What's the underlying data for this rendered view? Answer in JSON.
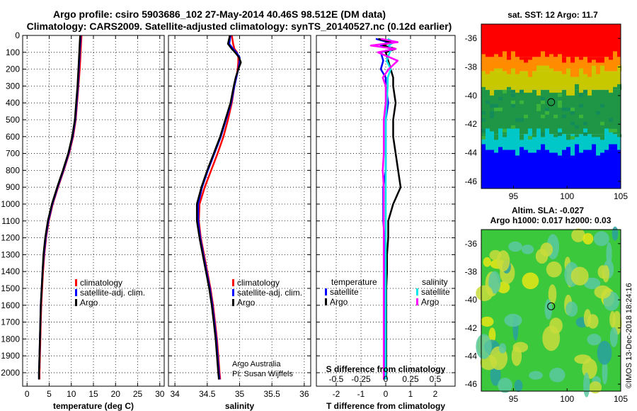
{
  "title_line1": "Argo profile: csiro 5903686_102 27-May-2014 40.46S 98.512E (DM data)",
  "title_line2": "Climatology: CARS2009. Satellite-adjusted climatology: synTS_20140527.nc (0.12d earlier)",
  "credit_text": "Argo Australia",
  "pi_text": "PI: Susan Wijffels",
  "imos_stamp": "©IMOS 13-Dec-2018 18:24:16",
  "colors": {
    "climatology": "#ff0000",
    "satellite": "#0000ff",
    "argo": "#000000",
    "sal_satellite": "#00e5e5",
    "sal_argo": "#ff00ff"
  },
  "chart_data": [
    {
      "type": "line",
      "id": "temperature",
      "xlabel": "temperature (deg C)",
      "ylabel": "",
      "xlim": [
        -1,
        31
      ],
      "ylim": [
        2080,
        0
      ],
      "y_reversed": true,
      "xticks": [
        0,
        5,
        10,
        15,
        20,
        25,
        30
      ],
      "xtick_labels": [
        "0",
        "5",
        "10",
        "15",
        "20",
        "25",
        "30"
      ],
      "yticks": [
        0,
        100,
        200,
        300,
        400,
        500,
        600,
        700,
        800,
        900,
        1000,
        1100,
        1200,
        1300,
        1400,
        1500,
        1600,
        1700,
        1800,
        1900,
        2000
      ],
      "grid": true,
      "legend": [
        "climatology",
        "satellite-adj. clim.",
        "Argo"
      ],
      "legend_position": "lower-right",
      "depth": [
        0,
        50,
        100,
        150,
        200,
        300,
        400,
        500,
        600,
        700,
        800,
        900,
        1000,
        1100,
        1200,
        1300,
        1400,
        1500,
        1600,
        1700,
        1800,
        1900,
        2000,
        2040
      ],
      "series": [
        {
          "name": "climatology",
          "values": [
            12.3,
            12.2,
            12.1,
            12.0,
            11.9,
            11.6,
            11.3,
            11.0,
            10.4,
            9.5,
            8.3,
            7.0,
            5.8,
            4.9,
            4.3,
            3.9,
            3.6,
            3.4,
            3.2,
            3.1,
            3.0,
            2.9,
            2.8,
            2.8
          ]
        },
        {
          "name": "satellite-adj. clim.",
          "values": [
            12.1,
            12.0,
            11.9,
            11.8,
            11.7,
            11.5,
            11.2,
            10.9,
            10.3,
            9.4,
            8.2,
            6.9,
            5.7,
            4.8,
            4.2,
            3.8,
            3.5,
            3.3,
            3.1,
            3.0,
            2.9,
            2.8,
            2.7,
            2.7
          ]
        },
        {
          "name": "Argo",
          "values": [
            12.0,
            11.9,
            11.8,
            11.7,
            11.6,
            11.4,
            11.1,
            10.8,
            10.2,
            9.3,
            8.1,
            6.8,
            5.6,
            4.7,
            4.1,
            3.7,
            3.5,
            3.3,
            3.1,
            3.0,
            2.9,
            2.8,
            2.7,
            2.7
          ]
        }
      ]
    },
    {
      "type": "line",
      "id": "salinity",
      "xlabel": "salinity",
      "ylabel": "",
      "xlim": [
        33.9,
        36.1
      ],
      "ylim": [
        2080,
        0
      ],
      "y_reversed": true,
      "xticks": [
        34,
        34.5,
        35,
        35.5,
        36
      ],
      "xtick_labels": [
        "34",
        "34.5",
        "35",
        "35.5",
        "36"
      ],
      "grid": true,
      "legend": [
        "climatology",
        "satellite-adj. clim.",
        "Argo"
      ],
      "legend_position": "lower-right",
      "depth": [
        0,
        50,
        80,
        100,
        130,
        160,
        200,
        250,
        300,
        400,
        500,
        600,
        700,
        800,
        900,
        1000,
        1100,
        1200,
        1300,
        1400,
        1500,
        1600,
        1700,
        1800,
        1900,
        2000,
        2040
      ],
      "series": [
        {
          "name": "climatology",
          "values": [
            34.88,
            34.9,
            34.92,
            34.96,
            34.98,
            34.98,
            34.97,
            34.95,
            34.92,
            34.88,
            34.82,
            34.75,
            34.66,
            34.56,
            34.46,
            34.38,
            34.37,
            34.4,
            34.45,
            34.5,
            34.55,
            34.59,
            34.62,
            34.65,
            34.67,
            34.69,
            34.7
          ]
        },
        {
          "name": "satellite-adj. clim.",
          "values": [
            34.86,
            34.84,
            34.9,
            34.95,
            35.0,
            35.0,
            34.98,
            34.95,
            34.92,
            34.87,
            34.79,
            34.71,
            34.61,
            34.51,
            34.42,
            34.36,
            34.36,
            34.39,
            34.44,
            34.49,
            34.54,
            34.58,
            34.61,
            34.64,
            34.66,
            34.68,
            34.69
          ]
        },
        {
          "name": "Argo",
          "values": [
            34.85,
            34.82,
            34.88,
            34.93,
            34.99,
            35.02,
            34.98,
            34.94,
            34.91,
            34.86,
            34.78,
            34.7,
            34.6,
            34.5,
            34.41,
            34.34,
            34.34,
            34.38,
            34.43,
            34.48,
            34.53,
            34.57,
            34.6,
            34.63,
            34.65,
            34.67,
            34.68
          ]
        }
      ]
    },
    {
      "type": "line",
      "id": "difference",
      "xlabel": "T difference from climatology",
      "top_label": "S difference from climatology",
      "ylabel": "",
      "xlim": [
        -2.8,
        2.8
      ],
      "ylim": [
        2080,
        0
      ],
      "y_reversed": true,
      "xticks": [
        -2,
        -1,
        0,
        1,
        2
      ],
      "xtick_labels": [
        "-2",
        "-1",
        "0",
        "1",
        "2"
      ],
      "top_ticks": [
        -0.5,
        -0.25,
        0,
        0.25,
        0.5
      ],
      "top_tick_labels": [
        "-0.5",
        "-0.25",
        "0",
        "0.25",
        "0.5"
      ],
      "top_xlim": [
        -0.7,
        0.7
      ],
      "grid": true,
      "legend_left_title": "temperature",
      "legend_right_title": "salinity",
      "legend_left": [
        "satellite",
        "Argo"
      ],
      "legend_right": [
        "satellite",
        "Argo"
      ],
      "depth": [
        20,
        40,
        60,
        80,
        100,
        150,
        200,
        250,
        300,
        400,
        500,
        600,
        700,
        800,
        900,
        1000,
        1100,
        1200,
        1300,
        1400,
        1500,
        1700,
        1900,
        2040
      ],
      "series": [
        {
          "name": "T satellite",
          "values": [
            -0.4,
            0.1,
            -0.2,
            0.3,
            -0.2,
            -0.1,
            -0.2,
            0.0,
            0.0,
            0.1,
            0.0,
            0.0,
            0.0,
            0.0,
            -0.1,
            -0.1,
            -0.1,
            -0.05,
            -0.05,
            -0.05,
            -0.05,
            -0.05,
            -0.05,
            -0.05
          ]
        },
        {
          "name": "T Argo",
          "values": [
            -0.3,
            0.2,
            -0.1,
            0.4,
            0.0,
            0.1,
            0.2,
            0.3,
            0.3,
            0.4,
            0.3,
            0.3,
            0.4,
            0.5,
            0.6,
            0.3,
            0.1,
            0.1,
            0.05,
            0.05,
            0.02,
            0.02,
            0.02,
            0.02
          ]
        },
        {
          "name": "S satellite",
          "values": [
            0.02,
            0.08,
            0.03,
            0.06,
            0.04,
            0.01,
            0.05,
            0.02,
            0.02,
            0.01,
            0.0,
            0.0,
            0.0,
            0.0,
            0.0,
            0.0,
            0.0,
            0.0,
            0.0,
            0.0,
            0.0,
            0.0,
            0.0,
            0.0
          ]
        },
        {
          "name": "S Argo",
          "values": [
            -0.05,
            0.12,
            -0.15,
            0.1,
            -0.08,
            0.12,
            0.03,
            -0.03,
            0.0,
            0.0,
            -0.02,
            -0.02,
            -0.02,
            -0.03,
            -0.02,
            -0.02,
            -0.02,
            -0.02,
            -0.02,
            -0.02,
            -0.02,
            -0.02,
            -0.02,
            -0.02
          ]
        }
      ]
    },
    {
      "type": "heatmap",
      "id": "sst_map",
      "title": "sat. SST: 12 Argo: 11.7",
      "xlim": [
        92,
        105
      ],
      "ylim": [
        -46.5,
        -35
      ],
      "xticks": [
        95,
        100,
        105
      ],
      "yticks": [
        -36,
        -38,
        -40,
        -42,
        -44,
        -46
      ],
      "xtick_labels": [
        "95",
        "100",
        "105"
      ],
      "ytick_labels": [
        "-36",
        "-38",
        "-40",
        "-42",
        "-44",
        "-46"
      ],
      "marker": [
        98.512,
        -40.46
      ],
      "bands": [
        {
          "lat_from": -35,
          "lat_to": -37.3,
          "color": "#ff0000"
        },
        {
          "lat_from": -37.3,
          "lat_to": -38.3,
          "color": "#ff8c00"
        },
        {
          "lat_from": -38.3,
          "lat_to": -39.6,
          "color": "#c8c800"
        },
        {
          "lat_from": -39.6,
          "lat_to": -42.7,
          "color": "#1e9646"
        },
        {
          "lat_from": -42.7,
          "lat_to": -43.8,
          "color": "#00c8c8"
        },
        {
          "lat_from": -43.8,
          "lat_to": -46.5,
          "color": "#0000ff"
        }
      ]
    },
    {
      "type": "heatmap",
      "id": "sla_map",
      "title": "Altim. SLA: -0.027",
      "subtitle": "Argo h1000: 0.017 h2000: 0.03",
      "xlim": [
        92,
        105
      ],
      "ylim": [
        -46.5,
        -35
      ],
      "xticks": [
        95,
        100,
        105
      ],
      "yticks": [
        -36,
        -38,
        -40,
        -42,
        -44,
        -46
      ],
      "xtick_labels": [
        "95",
        "100",
        "105"
      ],
      "ytick_labels": [
        "-36",
        "-38",
        "-40",
        "-42",
        "-44",
        "-46"
      ],
      "marker": [
        98.512,
        -40.46
      ]
    }
  ]
}
